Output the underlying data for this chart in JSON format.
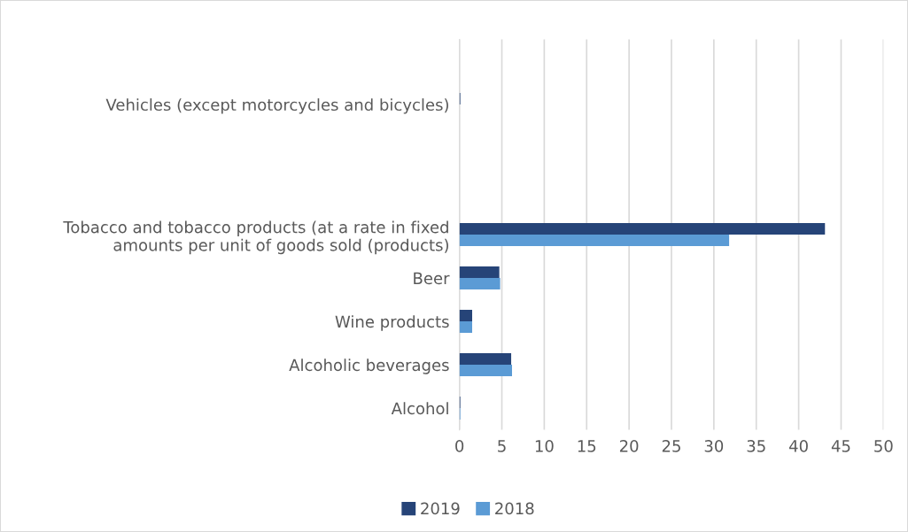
{
  "chart_data": {
    "type": "bar",
    "orientation": "horizontal",
    "categories": [
      null,
      "Vehicles (except motorcycles and bicycles)",
      null,
      null,
      "Tobacco and tobacco products (at a rate in fixed\namounts per unit of goods sold (products)",
      "Beer",
      "Wine products",
      "Alcoholic beverages",
      "Alcohol"
    ],
    "series": [
      {
        "name": "2019",
        "color": "#264478",
        "values": [
          null,
          0.1,
          null,
          null,
          43.1,
          4.7,
          1.5,
          6.1,
          0.1
        ]
      },
      {
        "name": "2018",
        "color": "#5b9bd5",
        "values": [
          null,
          null,
          null,
          null,
          31.8,
          4.8,
          1.5,
          6.2,
          0.1
        ]
      }
    ],
    "xlim": [
      0,
      50
    ],
    "xticks": [
      0,
      5,
      10,
      15,
      20,
      25,
      30,
      35,
      40,
      45,
      50
    ],
    "grid": "x",
    "legend": "bottom"
  }
}
